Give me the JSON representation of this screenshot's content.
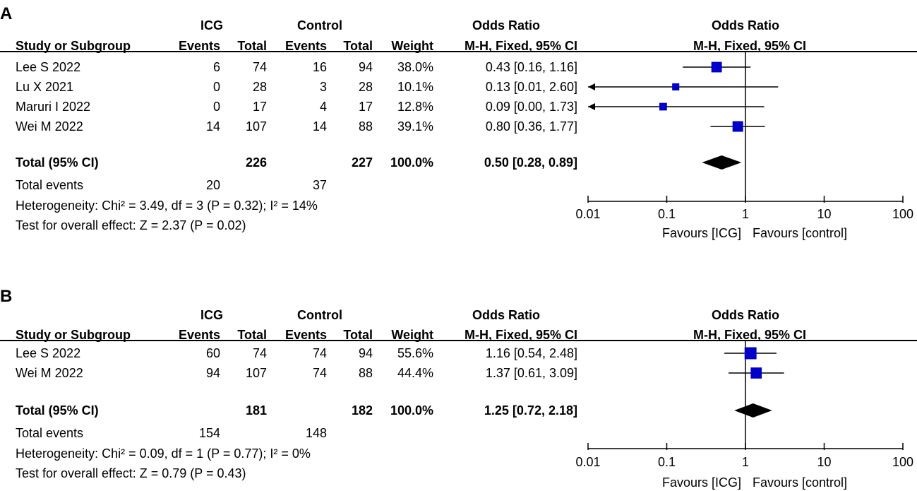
{
  "chart_data": [
    {
      "type": "forest",
      "panel": "A",
      "header": {
        "group1": "ICG",
        "group2": "Control",
        "or_group": "Odds Ratio",
        "col_study": "Study or Subgroup",
        "col_events1": "Events",
        "col_total1": "Total",
        "col_events2": "Events",
        "col_total2": "Total",
        "col_weight": "Weight",
        "col_ci": "M-H, Fixed, 95% CI",
        "plot_title": "Odds Ratio",
        "plot_subtitle": "M-H, Fixed, 95% CI"
      },
      "studies": [
        {
          "name": "Lee S 2022",
          "e1": "6",
          "t1": "74",
          "e2": "16",
          "t2": "94",
          "weight": "38.0%",
          "ci_text": "0.43 [0.16, 1.16]",
          "or": 0.43,
          "lo": 0.16,
          "hi": 1.16,
          "w": 38.0
        },
        {
          "name": "Lu X 2021",
          "e1": "0",
          "t1": "28",
          "e2": "3",
          "t2": "28",
          "weight": "10.1%",
          "ci_text": "0.13 [0.01, 2.60]",
          "or": 0.13,
          "lo": 0.01,
          "hi": 2.6,
          "w": 10.1
        },
        {
          "name": "Maruri I 2022",
          "e1": "0",
          "t1": "17",
          "e2": "4",
          "t2": "17",
          "weight": "12.8%",
          "ci_text": "0.09 [0.00, 1.73]",
          "or": 0.09,
          "lo": 0.0,
          "hi": 1.73,
          "w": 12.8
        },
        {
          "name": "Wei M 2022",
          "e1": "14",
          "t1": "107",
          "e2": "14",
          "t2": "88",
          "weight": "39.1%",
          "ci_text": "0.80 [0.36, 1.77]",
          "or": 0.8,
          "lo": 0.36,
          "hi": 1.77,
          "w": 39.1
        }
      ],
      "total": {
        "label": "Total (95% CI)",
        "t1": "226",
        "t2": "227",
        "weight": "100.0%",
        "ci_text": "0.50 [0.28, 0.89]",
        "or": 0.5,
        "lo": 0.28,
        "hi": 0.89
      },
      "total_events": {
        "label": "Total events",
        "e1": "20",
        "e2": "37"
      },
      "heterogeneity": "Heterogeneity: Chi² = 3.49, df = 3 (P = 0.32); I² = 14%",
      "overall_effect": "Test for overall effect: Z = 2.37 (P = 0.02)",
      "axis": {
        "scale": "log",
        "ticks": [
          "0.01",
          "0.1",
          "1",
          "10",
          "100"
        ],
        "tick_values": [
          0.01,
          0.1,
          1,
          10,
          100
        ],
        "range": [
          0.01,
          100
        ],
        "xlabel_left": "Favours [ICG]",
        "xlabel_right": "Favours [control]"
      }
    },
    {
      "type": "forest",
      "panel": "B",
      "header": {
        "group1": "ICG",
        "group2": "Control",
        "or_group": "Odds Ratio",
        "col_study": "Study or Subgroup",
        "col_events1": "Events",
        "col_total1": "Total",
        "col_events2": "Events",
        "col_total2": "Total",
        "col_weight": "Weight",
        "col_ci": "M-H, Fixed, 95% CI",
        "plot_title": "Odds Ratio",
        "plot_subtitle": "M-H, Fixed, 95% CI"
      },
      "studies": [
        {
          "name": "Lee S 2022",
          "e1": "60",
          "t1": "74",
          "e2": "74",
          "t2": "94",
          "weight": "55.6%",
          "ci_text": "1.16 [0.54, 2.48]",
          "or": 1.16,
          "lo": 0.54,
          "hi": 2.48,
          "w": 55.6
        },
        {
          "name": "Wei M 2022",
          "e1": "94",
          "t1": "107",
          "e2": "74",
          "t2": "88",
          "weight": "44.4%",
          "ci_text": "1.37 [0.61, 3.09]",
          "or": 1.37,
          "lo": 0.61,
          "hi": 3.09,
          "w": 44.4
        }
      ],
      "total": {
        "label": "Total (95% CI)",
        "t1": "181",
        "t2": "182",
        "weight": "100.0%",
        "ci_text": "1.25 [0.72, 2.18]",
        "or": 1.25,
        "lo": 0.72,
        "hi": 2.18
      },
      "total_events": {
        "label": "Total events",
        "e1": "154",
        "e2": "148"
      },
      "heterogeneity": "Heterogeneity: Chi² = 0.09, df = 1 (P = 0.77); I² = 0%",
      "overall_effect": "Test for overall effect: Z = 0.79 (P = 0.43)",
      "axis": {
        "scale": "log",
        "ticks": [
          "0.01",
          "0.1",
          "1",
          "10",
          "100"
        ],
        "tick_values": [
          0.01,
          0.1,
          1,
          10,
          100
        ],
        "range": [
          0.01,
          100
        ],
        "xlabel_left": "Favours [ICG]",
        "xlabel_right": "Favours [control]"
      }
    }
  ],
  "colors": {
    "square": "#0000c8",
    "diamond": "#000000",
    "line": "#000000"
  }
}
